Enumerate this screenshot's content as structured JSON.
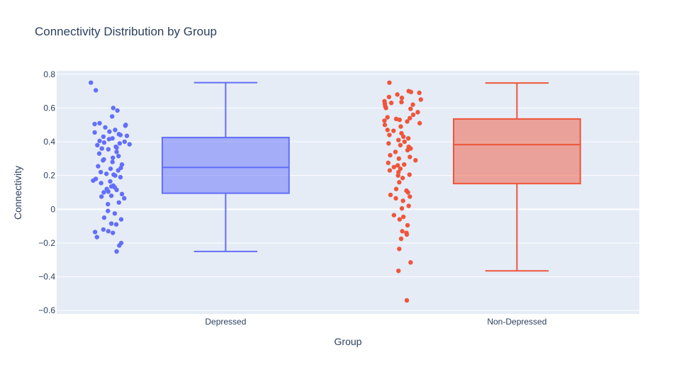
{
  "chart_data": {
    "type": "box",
    "title": "Connectivity Distribution by Group",
    "xlabel": "Group",
    "ylabel": "Connectivity",
    "categories": [
      "Depressed",
      "Non-Depressed"
    ],
    "ylim": [
      -0.62,
      0.82
    ],
    "yticks": [
      -0.6,
      -0.4,
      -0.2,
      0,
      0.2,
      0.4,
      0.6,
      0.8
    ],
    "ytick_labels": [
      "−0.6",
      "−0.4",
      "−0.2",
      "0",
      "0.2",
      "0.4",
      "0.6",
      "0.8"
    ],
    "grid": true,
    "boxpoints": "all",
    "series": [
      {
        "name": "Depressed",
        "color": "#636efa",
        "fill": "rgba(99,110,250,0.5)",
        "stats": {
          "lowerfence": -0.25,
          "q1": 0.095,
          "median": 0.248,
          "q3": 0.425,
          "upperfence": 0.75
        },
        "points": [
          0.75,
          0.705,
          0.6,
          0.585,
          0.55,
          0.51,
          0.505,
          0.5,
          0.495,
          0.485,
          0.47,
          0.46,
          0.455,
          0.445,
          0.44,
          0.435,
          0.43,
          0.42,
          0.415,
          0.405,
          0.4,
          0.395,
          0.39,
          0.385,
          0.38,
          0.37,
          0.365,
          0.36,
          0.355,
          0.34,
          0.33,
          0.315,
          0.305,
          0.295,
          0.29,
          0.28,
          0.265,
          0.255,
          0.245,
          0.24,
          0.23,
          0.22,
          0.21,
          0.205,
          0.2,
          0.19,
          0.18,
          0.17,
          0.165,
          0.155,
          0.14,
          0.135,
          0.13,
          0.12,
          0.115,
          0.105,
          0.1,
          0.09,
          0.08,
          0.075,
          0.065,
          0.04,
          0.03,
          -0.01,
          -0.025,
          -0.05,
          -0.06,
          -0.085,
          -0.09,
          -0.12,
          -0.13,
          -0.135,
          -0.14,
          -0.165,
          -0.2,
          -0.215,
          -0.25
        ],
        "jitter": [
          -0.02,
          0.11,
          0.57,
          0.68,
          0.54,
          0.21,
          0.08,
          0.9,
          0.89,
          0.36,
          0.62,
          0.47,
          0.08,
          0.72,
          0.76,
          0.93,
          0.31,
          0.55,
          0.46,
          0.21,
          0.87,
          0.33,
          0.74,
          1.0,
          0.15,
          0.64,
          0.66,
          0.27,
          0.44,
          0.66,
          0.2,
          0.71,
          0.56,
          0.32,
          0.3,
          0.55,
          0.8,
          0.17,
          0.77,
          0.5,
          0.7,
          0.24,
          0.39,
          0.58,
          0.62,
          0.76,
          0.11,
          0.04,
          0.49,
          0.25,
          0.57,
          0.52,
          0.61,
          0.4,
          0.66,
          0.44,
          0.32,
          0.8,
          0.52,
          0.26,
          0.86,
          0.72,
          0.43,
          0.43,
          0.61,
          0.33,
          0.78,
          0.52,
          0.65,
          0.31,
          0.44,
          0.09,
          0.56,
          0.14,
          0.78,
          0.73,
          0.66
        ]
      },
      {
        "name": "Non-Depressed",
        "color": "#ef553b",
        "fill": "rgba(239,85,59,0.5)",
        "stats": {
          "lowerfence": -0.365,
          "q1": 0.152,
          "median": 0.383,
          "q3": 0.535,
          "upperfence": 0.748
        },
        "points": [
          0.75,
          0.7,
          0.695,
          0.69,
          0.68,
          0.665,
          0.66,
          0.65,
          0.64,
          0.635,
          0.63,
          0.625,
          0.62,
          0.61,
          0.6,
          0.595,
          0.575,
          0.56,
          0.545,
          0.54,
          0.535,
          0.53,
          0.525,
          0.52,
          0.51,
          0.5,
          0.49,
          0.47,
          0.465,
          0.45,
          0.44,
          0.43,
          0.42,
          0.41,
          0.4,
          0.39,
          0.38,
          0.37,
          0.36,
          0.35,
          0.34,
          0.32,
          0.31,
          0.3,
          0.29,
          0.275,
          0.265,
          0.26,
          0.25,
          0.24,
          0.23,
          0.22,
          0.205,
          0.2,
          0.185,
          0.16,
          0.12,
          0.11,
          0.1,
          0.085,
          0.075,
          0.065,
          0.05,
          0.02,
          0.005,
          -0.035,
          -0.045,
          -0.06,
          -0.095,
          -0.13,
          -0.14,
          -0.15,
          -0.175,
          -0.235,
          -0.315,
          -0.365,
          -0.54
        ],
        "jitter": [
          0.17,
          0.68,
          0.74,
          0.96,
          0.38,
          0.16,
          0.5,
          1.0,
          0.04,
          0.49,
          0.22,
          0.05,
          0.79,
          0.06,
          0.08,
          0.73,
          0.92,
          0.8,
          0.12,
          0.71,
          0.35,
          0.44,
          0.04,
          0.64,
          0.97,
          0.05,
          0.47,
          0.12,
          0.28,
          0.49,
          0.17,
          0.54,
          0.67,
          0.41,
          0.57,
          0.15,
          0.46,
          0.68,
          0.73,
          0.65,
          0.33,
          0.19,
          0.71,
          0.42,
          0.86,
          0.14,
          0.56,
          0.39,
          0.29,
          0.46,
          0.18,
          0.41,
          0.7,
          0.4,
          0.52,
          0.43,
          0.35,
          0.62,
          0.66,
          0.2,
          0.71,
          0.34,
          0.53,
          0.68,
          0.5,
          0.29,
          0.54,
          0.44,
          0.65,
          0.51,
          0.62,
          0.63,
          0.48,
          0.43,
          0.73,
          0.41,
          0.63
        ]
      }
    ]
  }
}
